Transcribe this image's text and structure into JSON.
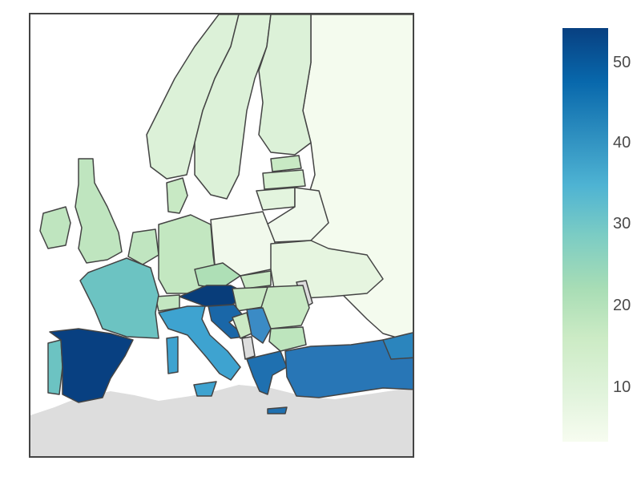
{
  "colorscale": {
    "stops": [
      "#f7fcf0",
      "#e0f3db",
      "#ccebc5",
      "#a8ddb5",
      "#7bccc4",
      "#4eb3d3",
      "#2b8cbe",
      "#0868ac",
      "#084081"
    ],
    "range": [
      3,
      54
    ],
    "ticks": [
      "10",
      "20",
      "30",
      "40",
      "50"
    ]
  },
  "colors": {
    "no_data": "#dddddd",
    "border": "#444444",
    "water": "#ffffff"
  }
}
